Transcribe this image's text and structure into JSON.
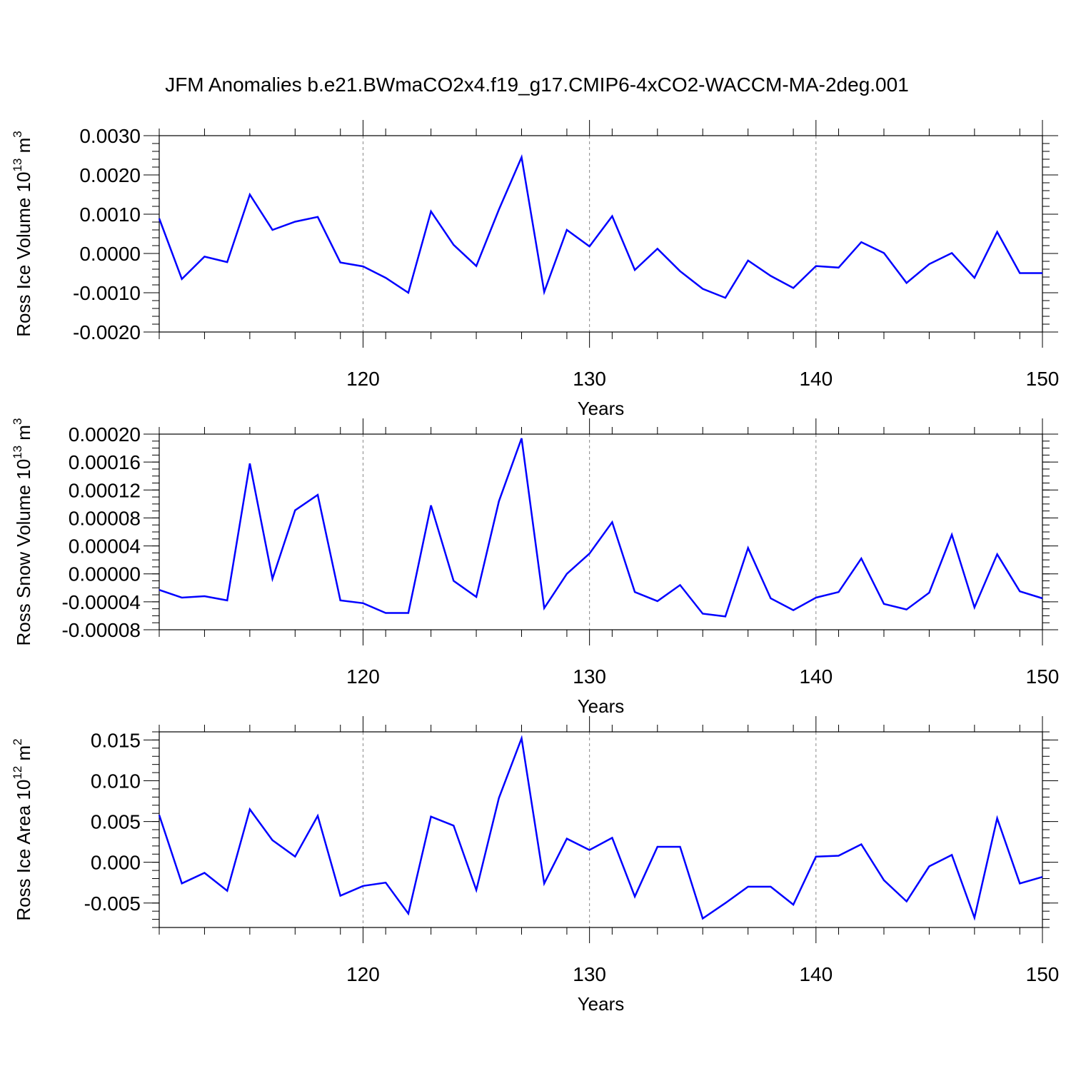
{
  "title": "JFM Anomalies b.e21.BWmaCO2x4.f19_g17.CMIP6-4xCO2-WACCM-MA-2deg.001",
  "colors": {
    "line": "#0000ff",
    "grid": "#888888",
    "axis": "#000000"
  },
  "chart_data": [
    {
      "type": "line",
      "ylabel": "Ross Ice Volume 10",
      "ylabel_exp": "13",
      "ylabel_unit": " m",
      "ylabel_unit_exp": "3",
      "xlabel": "Years",
      "xlim": [
        111,
        150
      ],
      "ylim": [
        -0.002,
        0.003
      ],
      "yticks": [
        -0.002,
        -0.001,
        0.0,
        0.001,
        0.002,
        0.003
      ],
      "ytick_labels": [
        "-0.0020",
        "-0.0010",
        "0.0000",
        "0.0010",
        "0.0020",
        "0.0030"
      ],
      "yminor_step": 0.0002,
      "xticks": [
        120,
        130,
        140,
        150
      ],
      "xtick_labels": [
        "120",
        "130",
        "140",
        "150"
      ],
      "grid_x": [
        120,
        130,
        140
      ],
      "x": [
        111,
        112,
        113,
        114,
        115,
        116,
        117,
        118,
        119,
        120,
        121,
        122,
        123,
        124,
        125,
        126,
        127,
        128,
        129,
        130,
        131,
        132,
        133,
        134,
        135,
        136,
        137,
        138,
        139,
        140,
        141,
        142,
        143,
        144,
        145,
        146,
        147,
        148,
        149,
        150
      ],
      "y": [
        0.00089,
        -0.00065,
        -8e-05,
        -0.00022,
        0.0015,
        0.0006,
        0.00081,
        0.00093,
        -0.00023,
        -0.00033,
        -0.00062,
        -0.001,
        0.00107,
        0.00022,
        -0.00032,
        0.00112,
        0.00245,
        -0.00098,
        0.0006,
        0.00018,
        0.00095,
        -0.00042,
        0.00012,
        -0.00045,
        -0.0009,
        -0.00113,
        -0.00018,
        -0.00057,
        -0.00088,
        -0.00032,
        -0.00036,
        0.00029,
        1e-05,
        -0.00075,
        -0.00027,
        1e-05,
        -0.00062,
        0.00055,
        -0.0005,
        -0.0005
      ]
    },
    {
      "type": "line",
      "ylabel": "Ross Snow Volume 10",
      "ylabel_exp": "13",
      "ylabel_unit": " m",
      "ylabel_unit_exp": "3",
      "xlabel": "Years",
      "xlim": [
        111,
        150
      ],
      "ylim": [
        -8e-05,
        0.0002
      ],
      "yticks": [
        -8e-05,
        -4e-05,
        0.0,
        4e-05,
        8e-05,
        0.00012,
        0.00016,
        0.0002
      ],
      "ytick_labels": [
        "-0.00008",
        "-0.00004",
        "0.00000",
        "0.00004",
        "0.00008",
        "0.00012",
        "0.00016",
        "0.00020"
      ],
      "yminor_step": 1e-05,
      "xticks": [
        120,
        130,
        140,
        150
      ],
      "xtick_labels": [
        "120",
        "130",
        "140",
        "150"
      ],
      "grid_x": [
        120,
        130,
        140
      ],
      "x": [
        111,
        112,
        113,
        114,
        115,
        116,
        117,
        118,
        119,
        120,
        121,
        122,
        123,
        124,
        125,
        126,
        127,
        128,
        129,
        130,
        131,
        132,
        133,
        134,
        135,
        136,
        137,
        138,
        139,
        140,
        141,
        142,
        143,
        144,
        145,
        146,
        147,
        148,
        149,
        150
      ],
      "y": [
        -2.3e-05,
        -3.4e-05,
        -3.2e-05,
        -3.8e-05,
        0.000158,
        -7e-06,
        9.1e-05,
        0.000113,
        -3.8e-05,
        -4.2e-05,
        -5.6e-05,
        -5.6e-05,
        9.8e-05,
        -1e-05,
        -3.3e-05,
        0.000104,
        0.000194,
        -4.9e-05,
        0.0,
        2.9e-05,
        7.4e-05,
        -2.6e-05,
        -3.9e-05,
        -1.6e-05,
        -5.7e-05,
        -6.1e-05,
        3.7e-05,
        -3.5e-05,
        -5.2e-05,
        -3.4e-05,
        -2.6e-05,
        2.2e-05,
        -4.3e-05,
        -5.1e-05,
        -2.7e-05,
        5.6e-05,
        -4.8e-05,
        2.8e-05,
        -2.5e-05,
        -3.5e-05
      ]
    },
    {
      "type": "line",
      "ylabel": "Ross Ice Area 10",
      "ylabel_exp": "12",
      "ylabel_unit": " m",
      "ylabel_unit_exp": "2",
      "xlabel": "Years",
      "xlim": [
        111,
        150
      ],
      "ylim": [
        -0.008,
        0.016
      ],
      "yticks": [
        -0.005,
        0.0,
        0.005,
        0.01,
        0.015
      ],
      "ytick_labels": [
        "-0.005",
        "0.000",
        "0.005",
        "0.010",
        "0.015"
      ],
      "yminor_step": 0.001,
      "xticks": [
        120,
        130,
        140,
        150
      ],
      "xtick_labels": [
        "120",
        "130",
        "140",
        "150"
      ],
      "grid_x": [
        120,
        130,
        140
      ],
      "x": [
        111,
        112,
        113,
        114,
        115,
        116,
        117,
        118,
        119,
        120,
        121,
        122,
        123,
        124,
        125,
        126,
        127,
        128,
        129,
        130,
        131,
        132,
        133,
        134,
        135,
        136,
        137,
        138,
        139,
        140,
        141,
        142,
        143,
        144,
        145,
        146,
        147,
        148,
        149,
        150
      ],
      "y": [
        0.0058,
        -0.0026,
        -0.0013,
        -0.0035,
        0.0065,
        0.0027,
        0.0007,
        0.0057,
        -0.0041,
        -0.0029,
        -0.0025,
        -0.0063,
        0.0056,
        0.0045,
        -0.0034,
        0.0079,
        0.0152,
        -0.0026,
        0.0029,
        0.0015,
        0.003,
        -0.0042,
        0.0019,
        0.0019,
        -0.0069,
        -0.005,
        -0.003,
        -0.003,
        -0.0052,
        0.0007,
        0.0008,
        0.0022,
        -0.0022,
        -0.0048,
        -0.0005,
        0.0009,
        -0.0068,
        0.0054,
        -0.0026,
        -0.0018
      ]
    }
  ]
}
